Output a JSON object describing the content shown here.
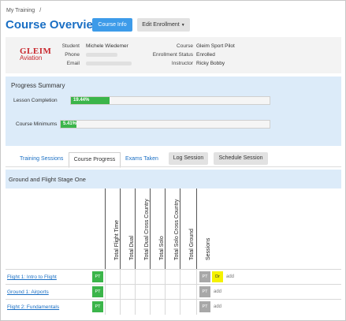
{
  "breadcrumb": {
    "item": "My Training",
    "separator": "/"
  },
  "page_title": "Course Overview",
  "buttons": {
    "course_info": "Course Info",
    "edit_enrollment": "Edit Enrollment",
    "caret": "▼"
  },
  "logo": {
    "line1": "GLEIM",
    "line2": "Aviation"
  },
  "student": {
    "student_label": "Student",
    "student_value": "Michele Wiedemer",
    "phone_label": "Phone",
    "email_label": "Email"
  },
  "course": {
    "course_label": "Course",
    "course_value": "Gleim Sport Pilot",
    "status_label": "Enrollment Status",
    "status_value": "Enrolled",
    "instructor_label": "Instructor",
    "instructor_value": "Ricky Bobby"
  },
  "progress_summary": {
    "title": "Progress Summary",
    "bars": [
      {
        "label": "Lesson Completion",
        "value_text": "19.44%",
        "fraction": 0.1944
      },
      {
        "label": "Course Minimums",
        "value_text": "5.41%",
        "fraction": 0.0541
      }
    ]
  },
  "tabs": {
    "training_sessions": "Training Sessions",
    "course_progress": "Course Progress",
    "exams_taken": "Exams Taken",
    "log_session": "Log Session",
    "schedule_session": "Schedule Session"
  },
  "stage_title": "Ground and Flight Stage One",
  "columns": [
    "Total Flight Time",
    "Total Dual",
    "Total Dual Cross Country",
    "Total Solo",
    "Total Solo Cross Country",
    "Total Ground",
    "Sessions"
  ],
  "rows": [
    {
      "name": "Flight 1: Intro to Flight",
      "status": "PT",
      "sessions": [
        "PT",
        "Dr"
      ],
      "add": "add"
    },
    {
      "name": "Ground 1: Airports",
      "status": "PT",
      "sessions": [
        "PT"
      ],
      "add": "add"
    },
    {
      "name": "Flight 2: Fundamentals",
      "status": "PT",
      "sessions": [
        "PT"
      ],
      "add": "add"
    }
  ],
  "colors": {
    "primary": "#3d9be9",
    "link": "#1a6fc4",
    "progress_bg": "#dcebf9",
    "success": "#3bb54a",
    "draft": "#f5f200"
  }
}
